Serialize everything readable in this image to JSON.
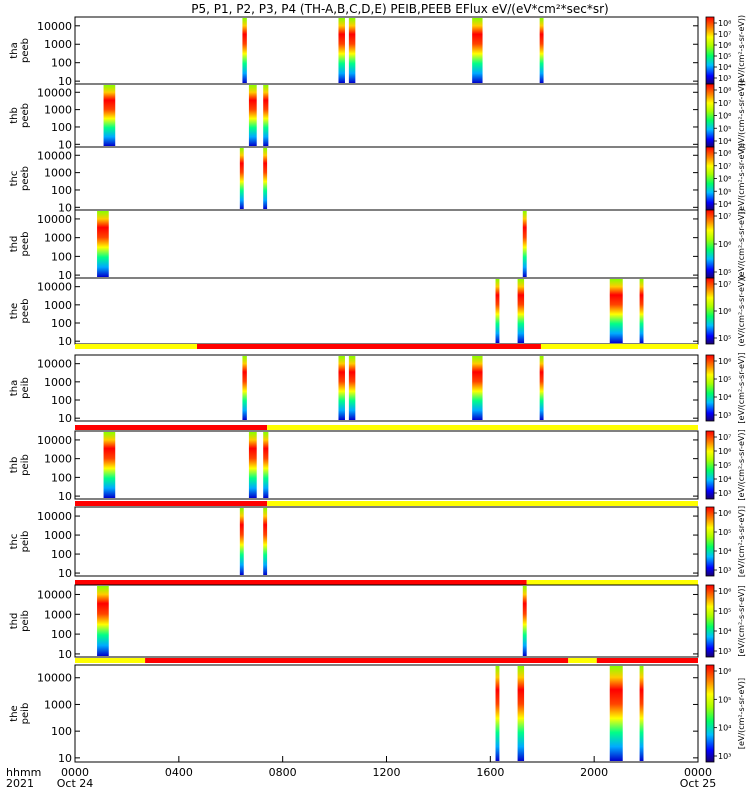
{
  "chart_data": {
    "type": "heatmap",
    "title": "P5, P1, P2, P3, P4 (TH-A,B,C,D,E) PEIB,PEEB EFlux eV/(eV*cm²*sec*sr)",
    "xaxis": {
      "label_line1": "hhmm",
      "label_line2": "2021",
      "range_hours": [
        0,
        24
      ],
      "ticks": [
        {
          "h": 0,
          "t1": "0000",
          "t2": "Oct 24"
        },
        {
          "h": 4,
          "t1": "0400",
          "t2": ""
        },
        {
          "h": 8,
          "t1": "0800",
          "t2": ""
        },
        {
          "h": 12,
          "t1": "1200",
          "t2": ""
        },
        {
          "h": 16,
          "t1": "1600",
          "t2": ""
        },
        {
          "h": 20,
          "t1": "2000",
          "t2": ""
        },
        {
          "h": 24,
          "t1": "0000",
          "t2": "Oct 25"
        }
      ]
    },
    "yaxis": {
      "scale": "log",
      "range": [
        7,
        30000
      ],
      "ticks": [
        {
          "v": 10,
          "label": "10"
        },
        {
          "v": 100,
          "label": "100"
        },
        {
          "v": 1000,
          "label": "1000"
        },
        {
          "v": 10000,
          "label": "10000"
        }
      ]
    },
    "colorbar_label_peeb": "(eV/(cm²-s-sr-eV))",
    "colorbar_label_peib": "[eV/(cm²-s-sr-eV)]",
    "panels": [
      {
        "ylabel1": "tha",
        "ylabel2": "peeb",
        "cbar_exponents": [
          "10⁸",
          "10⁷",
          "10⁶",
          "10⁵",
          "10⁴",
          "10³"
        ],
        "bursts": [
          [
            6.45,
            6.62
          ],
          [
            10.15,
            10.4
          ],
          [
            10.55,
            10.8
          ],
          [
            15.3,
            15.7
          ],
          [
            17.9,
            18.05
          ]
        ]
      },
      {
        "ylabel1": "thb",
        "ylabel2": "peeb",
        "cbar_exponents": [
          "10⁸",
          "10⁷",
          "10⁶",
          "10⁵",
          "10⁴"
        ],
        "bursts": [
          [
            1.1,
            1.55
          ],
          [
            6.7,
            7.0
          ],
          [
            7.25,
            7.45
          ]
        ]
      },
      {
        "ylabel1": "thc",
        "ylabel2": "peeb",
        "cbar_exponents": [
          "10⁸",
          "10⁷",
          "10⁶",
          "10⁵",
          "10⁴"
        ],
        "bursts": [
          [
            6.35,
            6.5
          ],
          [
            7.25,
            7.4
          ]
        ]
      },
      {
        "ylabel1": "thd",
        "ylabel2": "peeb",
        "cbar_exponents": [
          "10⁷",
          "10⁶",
          "10⁵"
        ],
        "bursts": [
          [
            0.85,
            1.3
          ],
          [
            17.25,
            17.4
          ]
        ]
      },
      {
        "ylabel1": "the",
        "ylabel2": "peeb",
        "cbar_exponents": [
          "10⁷",
          "10⁶",
          "10⁵"
        ],
        "bursts": [
          [
            16.2,
            16.35
          ],
          [
            17.05,
            17.3
          ],
          [
            20.6,
            21.1
          ],
          [
            21.75,
            21.9
          ]
        ]
      },
      {
        "ylabel1": "tha",
        "ylabel2": "peib",
        "cbar_exponents": [
          "10⁶",
          "10⁵",
          "10⁴",
          "10³"
        ],
        "bar": [
          [
            0,
            4.7,
            "#ffff00"
          ],
          [
            4.7,
            17.95,
            "#ff0000"
          ],
          [
            17.95,
            24,
            "#ffff00"
          ]
        ],
        "bursts": [
          [
            6.45,
            6.62
          ],
          [
            10.15,
            10.4
          ],
          [
            10.55,
            10.8
          ],
          [
            15.3,
            15.7
          ],
          [
            17.9,
            18.05
          ]
        ]
      },
      {
        "ylabel1": "thb",
        "ylabel2": "peib",
        "cbar_exponents": [
          "10⁷",
          "10⁶",
          "10⁵",
          "10⁴",
          "10³"
        ],
        "bar": [
          [
            0,
            7.4,
            "#ff0000"
          ],
          [
            7.4,
            24,
            "#ffff00"
          ]
        ],
        "bursts": [
          [
            1.1,
            1.55
          ],
          [
            6.7,
            7.0
          ],
          [
            7.25,
            7.45
          ]
        ]
      },
      {
        "ylabel1": "thc",
        "ylabel2": "peib",
        "cbar_exponents": [
          "10⁶",
          "10⁵",
          "10⁴",
          "10³"
        ],
        "bar": [
          [
            0,
            7.4,
            "#ff0000"
          ],
          [
            7.4,
            24,
            "#ffff00"
          ]
        ],
        "bursts": [
          [
            6.35,
            6.5
          ],
          [
            7.25,
            7.4
          ]
        ]
      },
      {
        "ylabel1": "thd",
        "ylabel2": "peib",
        "cbar_exponents": [
          "10⁶",
          "10⁵",
          "10⁴",
          "10³"
        ],
        "bar": [
          [
            0,
            17.4,
            "#ff0000"
          ],
          [
            17.4,
            24,
            "#ffff00"
          ]
        ],
        "bursts": [
          [
            0.85,
            1.3
          ],
          [
            17.25,
            17.4
          ]
        ]
      },
      {
        "ylabel1": "the",
        "ylabel2": "peib",
        "cbar_exponents": [
          "10⁶",
          "10⁵",
          "10⁴",
          "10³"
        ],
        "bar": [
          [
            0,
            2.7,
            "#ffff00"
          ],
          [
            2.7,
            19.0,
            "#ff0000"
          ],
          [
            19.0,
            20.1,
            "#ffff00"
          ],
          [
            20.1,
            24,
            "#ff0000"
          ]
        ],
        "bursts": [
          [
            16.2,
            16.35
          ],
          [
            17.05,
            17.3
          ],
          [
            20.6,
            21.1
          ],
          [
            21.75,
            21.9
          ]
        ]
      }
    ]
  }
}
